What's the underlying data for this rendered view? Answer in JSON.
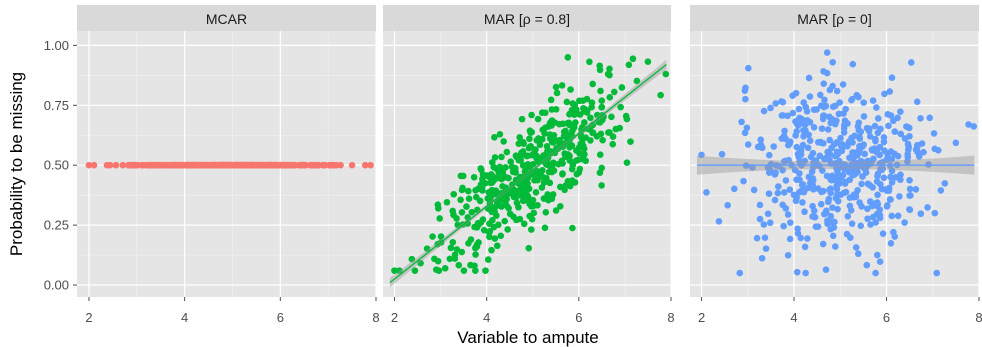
{
  "chart_data": {
    "type": "scatter",
    "ylabel": "Probability to be missing",
    "xlabel": "Variable to ampute",
    "xlim": [
      1.75,
      8.0
    ],
    "ylim": [
      -0.05,
      1.06
    ],
    "x_ticks": [
      2,
      4,
      6,
      8
    ],
    "y_ticks": [
      0.0,
      0.25,
      0.5,
      0.75,
      1.0
    ],
    "y_tick_labels": [
      "0.00",
      "0.25",
      "0.50",
      "0.75",
      "1.00"
    ],
    "grid": true,
    "legend": "none",
    "panels": [
      {
        "title": "MCAR",
        "color": "#F8766D",
        "points": "constant probability 0.5 across x from about 1.9 to 7.9",
        "fit_line": null
      },
      {
        "title": "MAR [ρ = 0.8]",
        "color": "#00BA38",
        "points": "positive relationship; probability rises from ~0.1 at x≈2 to ~0.9 at x≈7.5",
        "fit_line": {
          "x": [
            1.9,
            7.9
          ],
          "y": [
            0.01,
            0.92
          ],
          "ribbon": true
        }
      },
      {
        "title": "MAR [ρ = 0]",
        "color": "#619CFF",
        "points": "no relationship; probability scattered between ~0.05 and ~0.97",
        "fit_line": {
          "x": [
            1.9,
            7.9
          ],
          "y": [
            0.5,
            0.5
          ],
          "ribbon": true
        }
      }
    ]
  }
}
